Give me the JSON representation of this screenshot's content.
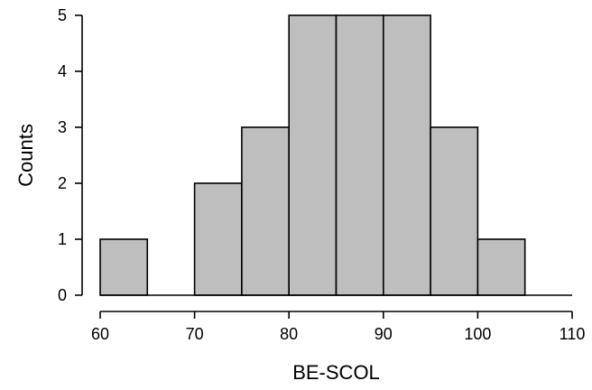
{
  "chart_data": {
    "type": "bar",
    "subtype": "histogram",
    "bin_edges": [
      60,
      65,
      70,
      75,
      80,
      85,
      90,
      95,
      100,
      105,
      110
    ],
    "values": [
      1,
      0,
      2,
      3,
      5,
      5,
      5,
      3,
      1,
      0
    ],
    "title": "",
    "xlabel": "BE-SCOL",
    "ylabel": "Counts",
    "xlim": [
      60,
      110
    ],
    "ylim": [
      0,
      5
    ],
    "x_ticks": [
      60,
      70,
      80,
      90,
      100,
      110
    ],
    "y_ticks": [
      0,
      1,
      2,
      3,
      4,
      5
    ],
    "grid": false,
    "legend": "none",
    "colors": {
      "bar_fill": "#bebebe",
      "bar_edge": "#000000"
    }
  }
}
